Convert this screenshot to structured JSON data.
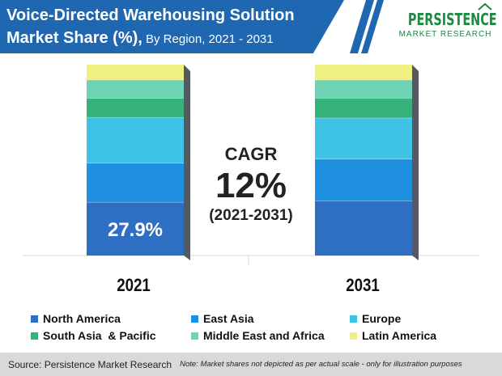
{
  "header": {
    "title_line1": "Voice-Directed Warehousing Solution",
    "title_line2_bold": "Market Share (%),",
    "title_line2_rest": " By Region, 2021 - 2031"
  },
  "logo": {
    "line1": "PERSISTENCE",
    "line2": "MARKET RESEARCH"
  },
  "cagr": {
    "label": "CAGR",
    "value": "12%",
    "period": "(2021-2031)"
  },
  "colors": {
    "banner": "#1f67b1",
    "logo_green": "#1b8a43",
    "North America": "#2e6fc4",
    "East Asia": "#1f8fe0",
    "Europe": "#3ec3e6",
    "South Asia & Pacific": "#35b27a",
    "Middle East and Africa": "#6fd4b5",
    "Latin America": "#eef081"
  },
  "chart_data": {
    "type": "bar",
    "stacked": true,
    "categories": [
      "2021",
      "2031"
    ],
    "series": [
      {
        "name": "North America",
        "values": [
          27.9,
          28.5
        ],
        "label": [
          "27.9%",
          ""
        ]
      },
      {
        "name": "East Asia",
        "values": [
          20.5,
          22.0
        ]
      },
      {
        "name": "Europe",
        "values": [
          24.0,
          21.5
        ]
      },
      {
        "name": "South Asia  & Pacific",
        "values": [
          10.0,
          10.5
        ]
      },
      {
        "name": "Middle East and Africa",
        "values": [
          9.6,
          9.5
        ]
      },
      {
        "name": "Latin America",
        "values": [
          8.0,
          8.0
        ]
      }
    ],
    "ylim": [
      0,
      100
    ],
    "legend_position": "bottom",
    "grid": false
  },
  "footer": {
    "source": "Source: Persistence Market Research",
    "note": "Note: Market shares not depicted as per actual scale - only for illustration purposes"
  }
}
